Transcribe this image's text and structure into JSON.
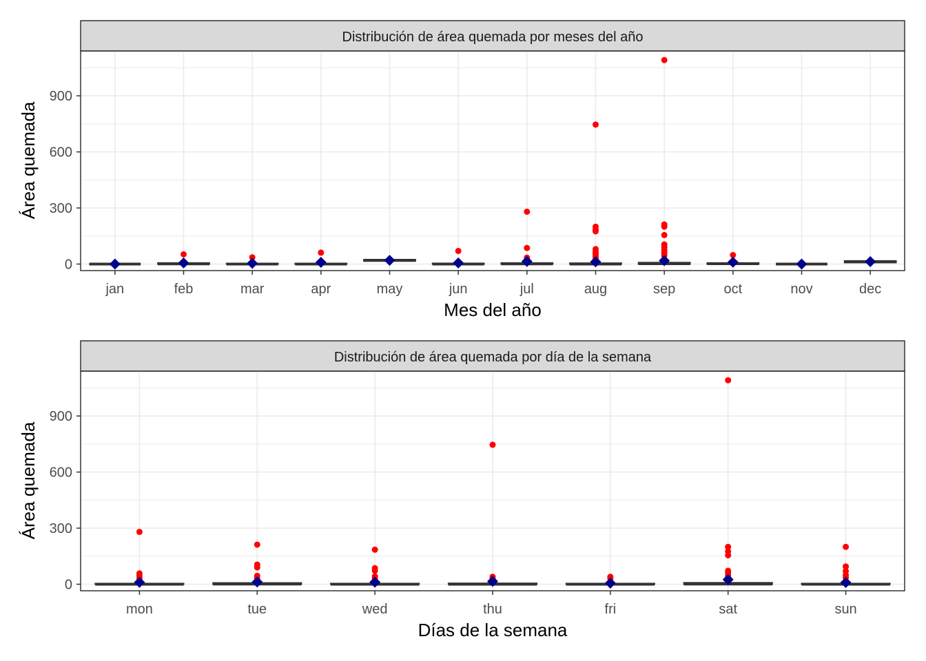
{
  "chart_data": [
    {
      "type": "boxplot",
      "title": "Distribución de área quemada por meses del año",
      "xlabel": "Mes del año",
      "ylabel": "Área quemada",
      "ylim": [
        -35,
        1140
      ],
      "yticks": [
        0,
        300,
        600,
        900
      ],
      "categories": [
        "jan",
        "feb",
        "mar",
        "apr",
        "may",
        "jun",
        "jul",
        "aug",
        "sep",
        "oct",
        "nov",
        "dec"
      ],
      "boxes": [
        {
          "category": "jan",
          "q1": 0,
          "median": 0,
          "q3": 0,
          "mean": 0,
          "outliers": []
        },
        {
          "category": "feb",
          "q1": 0,
          "median": 1,
          "q3": 6,
          "mean": 6,
          "outliers": [
            52
          ]
        },
        {
          "category": "mar",
          "q1": 0,
          "median": 0,
          "q3": 3,
          "mean": 4,
          "outliers": [
            36
          ]
        },
        {
          "category": "apr",
          "q1": 0,
          "median": 0,
          "q3": 3,
          "mean": 9,
          "outliers": [
            61
          ]
        },
        {
          "category": "may",
          "q1": 16,
          "median": 20,
          "q3": 24,
          "mean": 20,
          "outliers": []
        },
        {
          "category": "jun",
          "q1": 0,
          "median": 0,
          "q3": 4,
          "mean": 6,
          "outliers": [
            70
          ]
        },
        {
          "category": "jul",
          "q1": 0,
          "median": 1,
          "q3": 6,
          "mean": 14,
          "outliers": [
            280,
            86,
            34
          ]
        },
        {
          "category": "aug",
          "q1": 0,
          "median": 0,
          "q3": 5,
          "mean": 12,
          "outliers": [
            746,
            200,
            185,
            175,
            80,
            65,
            55,
            45,
            35,
            25
          ]
        },
        {
          "category": "sep",
          "q1": 0,
          "median": 2,
          "q3": 8,
          "mean": 18,
          "outliers": [
            1091,
            212,
            200,
            155,
            105,
            90,
            75,
            60,
            45
          ]
        },
        {
          "category": "oct",
          "q1": 0,
          "median": 2,
          "q3": 6,
          "mean": 10,
          "outliers": [
            48
          ]
        },
        {
          "category": "nov",
          "q1": 0,
          "median": 0,
          "q3": 0,
          "mean": 0,
          "outliers": []
        },
        {
          "category": "dec",
          "q1": 8,
          "median": 12,
          "q3": 17,
          "mean": 13,
          "outliers": []
        }
      ]
    },
    {
      "type": "boxplot",
      "title": "Distribución de área quemada por día de la semana",
      "xlabel": "Días de la semana",
      "ylabel": "Área quemada",
      "ylim": [
        -35,
        1140
      ],
      "yticks": [
        0,
        300,
        600,
        900
      ],
      "categories": [
        "mon",
        "tue",
        "wed",
        "thu",
        "fri",
        "sat",
        "sun"
      ],
      "boxes": [
        {
          "category": "mon",
          "q1": 0,
          "median": 0,
          "q3": 4,
          "mean": 10,
          "outliers": [
            280,
            58,
            45,
            32
          ]
        },
        {
          "category": "tue",
          "q1": 0,
          "median": 1,
          "q3": 7,
          "mean": 12,
          "outliers": [
            212,
            105,
            90,
            45,
            32
          ]
        },
        {
          "category": "wed",
          "q1": 0,
          "median": 0,
          "q3": 4,
          "mean": 11,
          "outliers": [
            185,
            86,
            72,
            42,
            30
          ]
        },
        {
          "category": "thu",
          "q1": 0,
          "median": 0,
          "q3": 5,
          "mean": 15,
          "outliers": [
            746,
            40,
            30
          ]
        },
        {
          "category": "fri",
          "q1": 0,
          "median": 0,
          "q3": 4,
          "mean": 6,
          "outliers": [
            40,
            32
          ]
        },
        {
          "category": "sat",
          "q1": 0,
          "median": 1,
          "q3": 8,
          "mean": 25,
          "outliers": [
            1091,
            200,
            175,
            155,
            72,
            60,
            45
          ]
        },
        {
          "category": "sun",
          "q1": 0,
          "median": 0,
          "q3": 4,
          "mean": 9,
          "outliers": [
            200,
            95,
            70,
            50,
            35
          ]
        }
      ]
    }
  ],
  "colors": {
    "outlier": "#ff0000",
    "mean": "#00008b",
    "box_line": "#333333",
    "strip_fill": "#d9d9d9",
    "grid": "#ebebeb",
    "panel_border": "#333333"
  }
}
